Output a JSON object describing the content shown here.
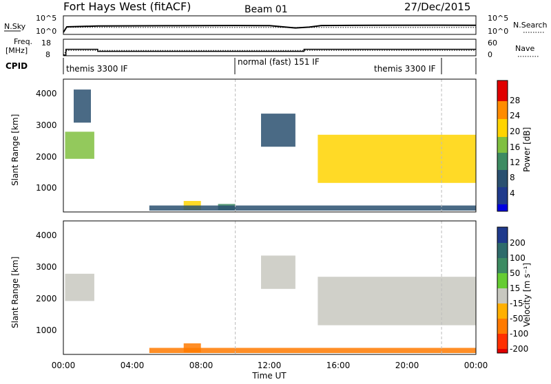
{
  "header": {
    "station": "Fort Hays West (fitACF)",
    "beam": "Beam 01",
    "date": "27/Dec/2015"
  },
  "noise_panel": {
    "left_label": "N.Sky",
    "right_label": "N.Search",
    "ticks_left": [
      "10^5",
      "10^0"
    ],
    "ticks_right": [
      "10^5",
      "10^0"
    ]
  },
  "freq_panel": {
    "left_label_1": "Freq.",
    "left_label_2": "[MHz]",
    "right_label": "Nave",
    "ticks_left": [
      "18",
      "8"
    ],
    "ticks_right": [
      "60",
      "0"
    ]
  },
  "cpid_panel": {
    "label": "CPID",
    "segments": [
      {
        "label": "themis 3300 IF",
        "start_h": 0,
        "end_h": 10
      },
      {
        "label": "normal (fast) 151 IF",
        "start_h": 10,
        "end_h": 22
      },
      {
        "label": "themis 3300 IF",
        "start_h": 22,
        "end_h": 24
      }
    ]
  },
  "power_panel": {
    "ylabel": "Slant Range [km]",
    "yticks": [
      "4000",
      "3000",
      "2000",
      "1000"
    ],
    "colorbar": {
      "label": "Power [dB]",
      "ticks": [
        "28",
        "24",
        "20",
        "16",
        "12",
        "8",
        "4"
      ]
    }
  },
  "velocity_panel": {
    "ylabel": "Slant Range [km]",
    "yticks": [
      "4000",
      "3000",
      "2000",
      "1000"
    ],
    "colorbar": {
      "label": "Velocity [m s⁻¹]",
      "ticks": [
        "200",
        "100",
        "50",
        "15",
        "-15",
        "-50",
        "-100",
        "-200"
      ]
    }
  },
  "xaxis": {
    "label": "Time UT",
    "ticks": [
      "00:00",
      "04:00",
      "08:00",
      "12:00",
      "16:00",
      "20:00",
      "00:00"
    ]
  },
  "chart_data": [
    {
      "type": "line",
      "title": "Fort Hays West (fitACF) Beam 01 27/Dec/2015",
      "xlabel": "Time UT",
      "ylabel": "N.Sky",
      "x_range_hours": [
        0,
        24
      ],
      "scale": "log",
      "y_range": [
        1,
        100000
      ],
      "series": [
        {
          "name": "N.Sky",
          "x": [
            0,
            0.1,
            0.2,
            2,
            6,
            10,
            12,
            13.5,
            14.3,
            15,
            18,
            22,
            24
          ],
          "y": [
            1,
            10,
            100,
            200,
            250,
            300,
            260,
            40,
            80,
            300,
            350,
            400,
            380
          ]
        },
        {
          "name": "N.Search",
          "x": [
            0,
            0.2,
            4,
            8,
            12,
            16,
            20,
            24
          ],
          "y": [
            1,
            70,
            60,
            60,
            60,
            60,
            60,
            60
          ]
        }
      ]
    },
    {
      "type": "line",
      "xlabel": "Time UT",
      "ylabel": "Freq. [MHz]",
      "x_range_hours": [
        0,
        24
      ],
      "ylim": [
        8,
        18
      ],
      "series": [
        {
          "name": "Freq.",
          "x": [
            0,
            0.15,
            0.15,
            2.0,
            2.0,
            14.0,
            14.0,
            24
          ],
          "y": [
            8,
            8,
            12.2,
            12.2,
            10.7,
            10.7,
            12.2,
            12.2
          ]
        },
        {
          "name": "Nave",
          "x": [
            0,
            0.2,
            24
          ],
          "y": [
            0,
            20,
            20
          ]
        }
      ]
    },
    {
      "type": "heatmap",
      "xlabel": "Time UT",
      "ylabel": "Slant Range [km]",
      "x_range_hours": [
        0,
        24
      ],
      "y_range_km": [
        180,
        4500
      ],
      "colorbar": {
        "label": "Power [dB]",
        "range": [
          0,
          30
        ]
      },
      "regions": [
        {
          "t": [
            0.1,
            1.8
          ],
          "r": [
            1900,
            2800
          ],
          "v": 18
        },
        {
          "t": [
            0.6,
            1.6
          ],
          "r": [
            3100,
            4200
          ],
          "v": 8
        },
        {
          "t": [
            7.0,
            8.0
          ],
          "r": [
            200,
            500
          ],
          "v": 20
        },
        {
          "t": [
            9.0,
            10.0
          ],
          "r": [
            200,
            400
          ],
          "v": 14
        },
        {
          "t": [
            11.5,
            13.5
          ],
          "r": [
            2300,
            3400
          ],
          "v": 10
        },
        {
          "t": [
            14.8,
            24.0
          ],
          "r": [
            1100,
            2700
          ],
          "v": 22
        },
        {
          "t": [
            5.0,
            24.0
          ],
          "r": [
            180,
            350
          ],
          "v": 10
        }
      ]
    },
    {
      "type": "heatmap",
      "xlabel": "Time UT",
      "ylabel": "Slant Range [km]",
      "x_range_hours": [
        0,
        24
      ],
      "y_range_km": [
        180,
        4500
      ],
      "colorbar": {
        "label": "Velocity [m s⁻¹]",
        "range": [
          -200,
          200
        ]
      },
      "regions": [
        {
          "t": [
            0.1,
            1.8
          ],
          "r": [
            1900,
            2800
          ],
          "v": 0
        },
        {
          "t": [
            11.5,
            13.5
          ],
          "r": [
            2300,
            3400
          ],
          "v": 0
        },
        {
          "t": [
            14.8,
            24.0
          ],
          "r": [
            1100,
            2700
          ],
          "v": 0
        },
        {
          "t": [
            7.0,
            8.0
          ],
          "r": [
            200,
            500
          ],
          "v": -60
        },
        {
          "t": [
            5.0,
            24.0
          ],
          "r": [
            180,
            350
          ],
          "v": -50
        }
      ]
    }
  ]
}
